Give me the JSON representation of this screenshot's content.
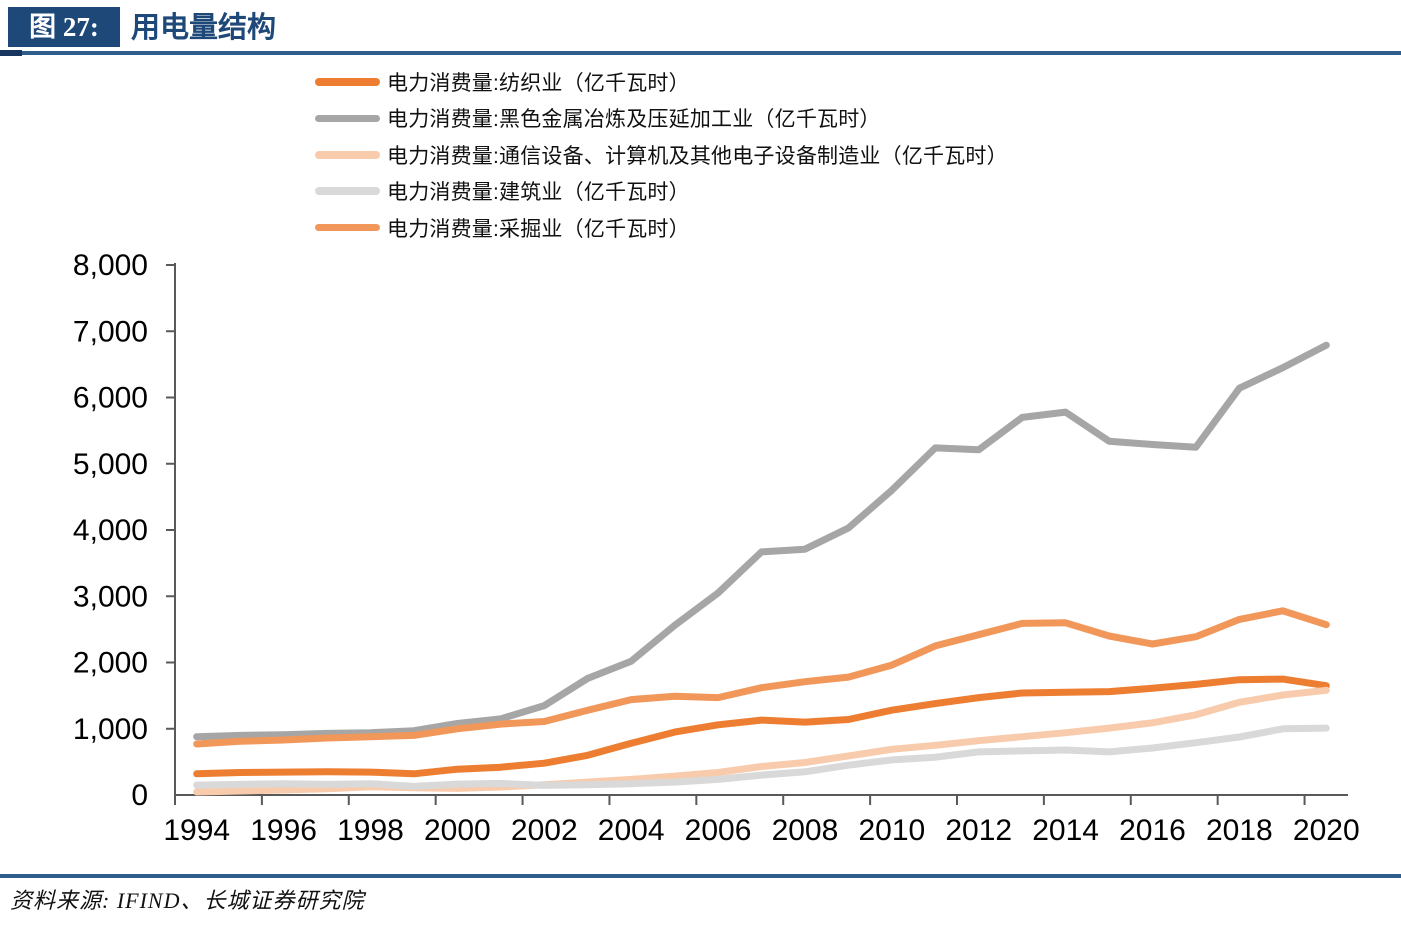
{
  "header": {
    "figure_label": "图 27:",
    "title": "用电量结构"
  },
  "footer": {
    "source": "资料来源: IFIND、长城证券研究院"
  },
  "colors": {
    "accent_blue": "#1E4878",
    "rule_blue": "#2F5D8C",
    "axis_gray": "#595959"
  },
  "chart_data": {
    "type": "line",
    "title": "用电量结构",
    "grid": false,
    "legend_position": "top-left",
    "x": [
      1994,
      1995,
      1996,
      1997,
      1998,
      1999,
      2000,
      2001,
      2002,
      2003,
      2004,
      2005,
      2006,
      2007,
      2008,
      2009,
      2010,
      2011,
      2012,
      2013,
      2014,
      2015,
      2016,
      2017,
      2018,
      2019,
      2020
    ],
    "x_tick_labels": [
      "1994",
      "1996",
      "1998",
      "2000",
      "2002",
      "2004",
      "2006",
      "2008",
      "2010",
      "2012",
      "2014",
      "2016",
      "2018",
      "2020"
    ],
    "ylim": [
      0,
      8000
    ],
    "y_tick_interval": 1000,
    "y_tick_labels": [
      "0",
      "1,000",
      "2,000",
      "3,000",
      "4,000",
      "5,000",
      "6,000",
      "7,000",
      "8,000"
    ],
    "series": [
      {
        "name": "电力消费量:纺织业（亿千瓦时）",
        "color": "#ED7D31",
        "values": [
          320,
          340,
          345,
          350,
          345,
          320,
          390,
          420,
          480,
          600,
          780,
          950,
          1060,
          1130,
          1100,
          1140,
          1280,
          1380,
          1470,
          1540,
          1550,
          1560,
          1610,
          1670,
          1740,
          1750,
          1650
        ]
      },
      {
        "name": "电力消费量:黑色金属冶炼及压延加工业（亿千瓦时）",
        "color": "#A6A6A6",
        "values": [
          880,
          900,
          910,
          930,
          940,
          970,
          1080,
          1150,
          1350,
          1760,
          2020,
          2560,
          3050,
          3670,
          3710,
          4030,
          4600,
          5240,
          5210,
          5700,
          5780,
          5340,
          5290,
          5250,
          6140,
          6450,
          6790
        ]
      },
      {
        "name": "电力消费量:通信设备、计算机及其他电子设备制造业（亿千瓦时）",
        "color": "#F8CBAD",
        "values": [
          45,
          60,
          75,
          95,
          125,
          110,
          100,
          120,
          155,
          195,
          235,
          285,
          340,
          430,
          490,
          590,
          690,
          750,
          820,
          880,
          940,
          1010,
          1090,
          1210,
          1400,
          1510,
          1580
        ]
      },
      {
        "name": "电力消费量:建筑业（亿千瓦时）",
        "color": "#D9D9D9",
        "values": [
          150,
          160,
          170,
          160,
          170,
          130,
          165,
          175,
          145,
          155,
          170,
          195,
          235,
          300,
          350,
          450,
          530,
          570,
          650,
          665,
          680,
          650,
          710,
          790,
          875,
          1000,
          1010
        ]
      },
      {
        "name": "电力消费量:采掘业（亿千瓦时）",
        "color": "#F1975A",
        "values": [
          770,
          810,
          830,
          860,
          880,
          900,
          1000,
          1070,
          1110,
          1280,
          1440,
          1490,
          1470,
          1620,
          1710,
          1780,
          1960,
          2250,
          2420,
          2590,
          2600,
          2400,
          2280,
          2390,
          2650,
          2780,
          2570
        ]
      }
    ]
  }
}
